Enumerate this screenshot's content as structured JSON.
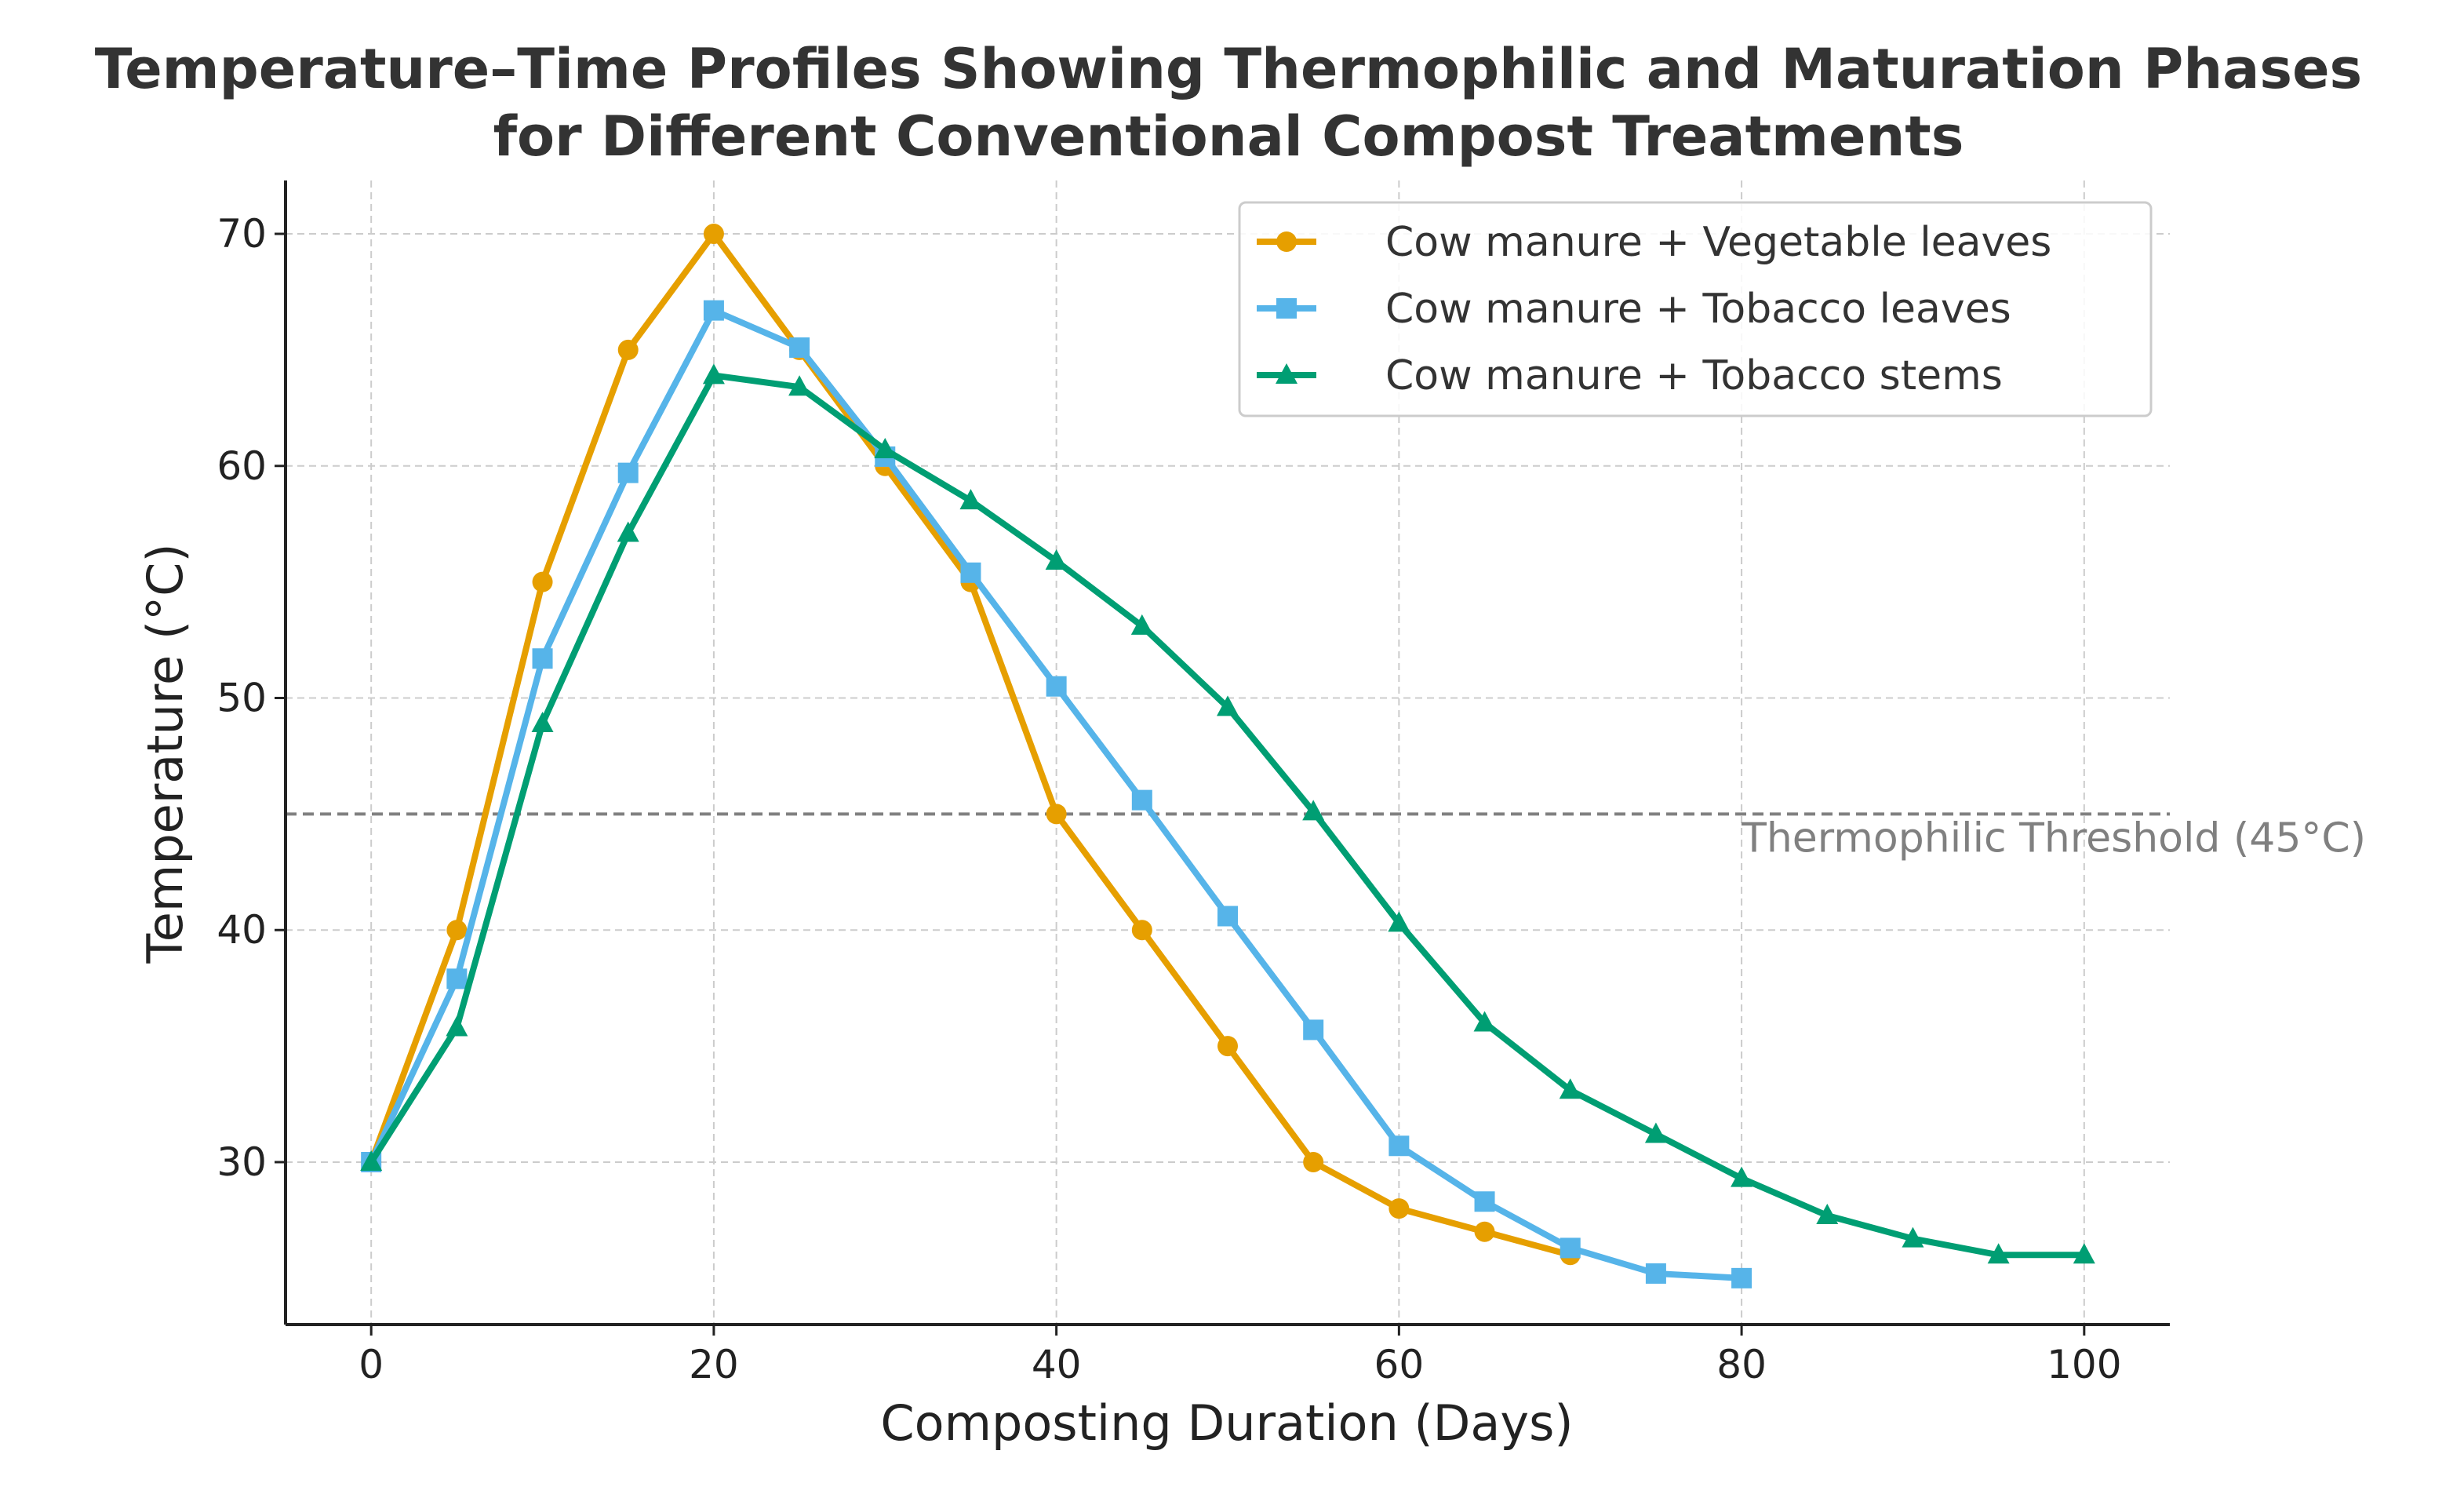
{
  "chart_data": {
    "type": "line",
    "title_line1": "Temperature–Time Profiles Showing Thermophilic and Maturation Phases",
    "title_line2": "for Different Conventional Compost Treatments",
    "xlabel": "Composting Duration (Days)",
    "ylabel": "Temperature (°C)",
    "xlim": [
      -5,
      105
    ],
    "ylim": [
      23,
      72.3
    ],
    "xticks": [
      0,
      20,
      40,
      60,
      80,
      100
    ],
    "yticks": [
      30,
      40,
      50,
      60,
      70
    ],
    "grid": true,
    "legend_position": "top-right",
    "threshold": {
      "value": 45,
      "label": "Thermophilic Threshold (45°C)",
      "color": "#808080"
    },
    "series": [
      {
        "name": "Cow manure + Vegetable leaves",
        "color": "#E69F00",
        "marker": "circle",
        "x": [
          0,
          5,
          10,
          15,
          20,
          25,
          30,
          35,
          40,
          45,
          50,
          55,
          60,
          65,
          70
        ],
        "values": [
          30,
          40,
          55,
          65,
          70,
          65,
          60,
          55,
          45,
          40,
          35,
          30,
          28,
          27,
          26
        ]
      },
      {
        "name": "Cow manure + Tobacco leaves",
        "color": "#56B4E9",
        "marker": "square",
        "x": [
          0,
          5,
          10,
          15,
          20,
          25,
          30,
          35,
          40,
          45,
          50,
          55,
          60,
          65,
          70,
          75,
          80
        ],
        "values": [
          30,
          37.9,
          51.7,
          59.7,
          66.7,
          65.1,
          60.4,
          55.4,
          50.5,
          45.6,
          40.6,
          35.7,
          30.7,
          28.3,
          26.3,
          25.2,
          25
        ]
      },
      {
        "name": "Cow manure + Tobacco stems",
        "color": "#009E73",
        "marker": "triangle",
        "x": [
          0,
          5,
          10,
          15,
          20,
          25,
          30,
          35,
          40,
          45,
          50,
          55,
          60,
          65,
          70,
          75,
          80,
          85,
          90,
          95,
          100
        ],
        "values": [
          30,
          35.8,
          48.9,
          57.1,
          63.9,
          63.4,
          60.7,
          58.5,
          55.9,
          53.1,
          49.6,
          45.1,
          40.3,
          36,
          33.1,
          31.2,
          29.3,
          27.7,
          26.7,
          26,
          26
        ]
      }
    ]
  }
}
